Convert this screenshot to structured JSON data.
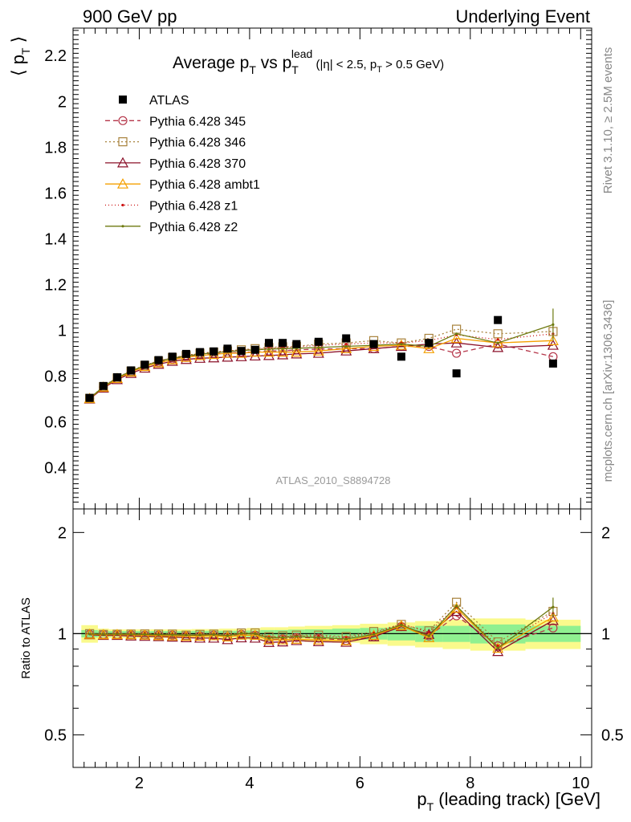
{
  "header": {
    "left": "900 GeV pp",
    "right": "Underlying Event"
  },
  "side": {
    "rivet": "Rivet 3.1.10, ≥ 2.5M events",
    "mcplots": "mcplots.cern.ch [arXiv:1306.3436]"
  },
  "analysis_id": "ATLAS_2010_S8894728",
  "colors": {
    "atlas": "#000000",
    "p345": "#b5364a",
    "p346": "#a8823c",
    "p370": "#8b1029",
    "ambt1": "#f5a000",
    "z1": "#cc1111",
    "z2": "#6e7a10",
    "band_green": "#90f090",
    "band_yellow": "#fafa8c"
  },
  "chart_data": [
    {
      "type": "scatter",
      "panel": "main",
      "title_main": "Average p",
      "title_sub1": "T",
      "title_mid": " vs p",
      "title_sub2": "T",
      "title_sup": "lead",
      "title_cond_a": " (|η| < 2.5, p",
      "title_cond_sub": "T",
      "title_cond_b": " > 0.5 GeV)",
      "ylabel_text": "⟨ p",
      "ylabel_sub": "T",
      "ylabel_close": " ⟩",
      "xlim": [
        0.8,
        10.2
      ],
      "ylim": [
        0.22,
        2.32
      ],
      "yticks": [
        0.4,
        0.6,
        0.8,
        1,
        1.2,
        1.4,
        1.6,
        1.8,
        2,
        2.2
      ],
      "ytick_labels": [
        "0.4",
        "0.6",
        "0.8",
        "1",
        "1.2",
        "1.4",
        "1.6",
        "1.8",
        "2",
        "2.2"
      ],
      "x": [
        1.1,
        1.35,
        1.6,
        1.85,
        2.1,
        2.35,
        2.6,
        2.85,
        3.1,
        3.35,
        3.6,
        3.85,
        4.1,
        4.35,
        4.6,
        4.85,
        5.25,
        5.75,
        6.25,
        6.75,
        7.25,
        7.75,
        8.5,
        9.5
      ],
      "legend": [
        {
          "key": "atlas",
          "label": "ATLAS"
        },
        {
          "key": "p345",
          "label": "Pythia 6.428 345"
        },
        {
          "key": "p346",
          "label": "Pythia 6.428 346"
        },
        {
          "key": "p370",
          "label": "Pythia 6.428 370"
        },
        {
          "key": "ambt1",
          "label": "Pythia 6.428 ambt1"
        },
        {
          "key": "z1",
          "label": "Pythia 6.428 z1"
        },
        {
          "key": "z2",
          "label": "Pythia 6.428 z2"
        }
      ],
      "series": [
        {
          "key": "atlas",
          "name": "ATLAS",
          "values": [
            0.705,
            0.757,
            0.795,
            0.825,
            0.85,
            0.87,
            0.885,
            0.897,
            0.905,
            0.908,
            0.92,
            0.91,
            0.915,
            0.945,
            0.945,
            0.94,
            0.95,
            0.965,
            0.94,
            0.885,
            0.945,
            0.812,
            1.045,
            0.855
          ]
        },
        {
          "key": "p345",
          "name": "Pythia 6.428 345",
          "values": [
            0.702,
            0.752,
            0.79,
            0.818,
            0.842,
            0.86,
            0.875,
            0.885,
            0.893,
            0.898,
            0.9,
            0.905,
            0.905,
            0.91,
            0.91,
            0.915,
            0.918,
            0.92,
            0.92,
            0.93,
            0.93,
            0.9,
            0.94,
            0.885
          ]
        },
        {
          "key": "p346",
          "name": "Pythia 6.428 346",
          "values": [
            0.703,
            0.754,
            0.792,
            0.822,
            0.847,
            0.866,
            0.881,
            0.89,
            0.9,
            0.905,
            0.91,
            0.915,
            0.92,
            0.925,
            0.928,
            0.93,
            0.94,
            0.945,
            0.955,
            0.945,
            0.965,
            1.005,
            0.985,
            0.995
          ]
        },
        {
          "key": "p370",
          "name": "Pythia 6.428 370",
          "values": [
            0.7,
            0.748,
            0.785,
            0.812,
            0.835,
            0.852,
            0.865,
            0.873,
            0.878,
            0.88,
            0.883,
            0.885,
            0.888,
            0.89,
            0.893,
            0.897,
            0.9,
            0.91,
            0.92,
            0.93,
            0.94,
            0.945,
            0.925,
            0.935
          ]
        },
        {
          "key": "ambt1",
          "name": "Pythia 6.428 ambt1",
          "values": [
            0.702,
            0.752,
            0.79,
            0.818,
            0.842,
            0.858,
            0.872,
            0.882,
            0.89,
            0.895,
            0.9,
            0.9,
            0.905,
            0.905,
            0.905,
            0.905,
            0.91,
            0.92,
            0.93,
            0.935,
            0.92,
            0.965,
            0.945,
            0.955
          ]
        },
        {
          "key": "z1",
          "name": "Pythia 6.428 z1",
          "values": [
            0.703,
            0.755,
            0.795,
            0.823,
            0.848,
            0.866,
            0.88,
            0.89,
            0.898,
            0.905,
            0.91,
            0.915,
            0.918,
            0.922,
            0.925,
            0.928,
            0.935,
            0.94,
            0.945,
            0.945,
            0.955,
            0.98,
            0.96,
            0.985
          ]
        },
        {
          "key": "z2",
          "name": "Pythia 6.428 z2",
          "values": [
            0.703,
            0.754,
            0.793,
            0.822,
            0.846,
            0.864,
            0.878,
            0.888,
            0.896,
            0.902,
            0.907,
            0.912,
            0.915,
            0.918,
            0.92,
            0.922,
            0.925,
            0.93,
            0.935,
            0.94,
            0.93,
            0.985,
            0.945,
            1.025
          ]
        }
      ]
    },
    {
      "type": "line",
      "panel": "ratio",
      "ylabel": "Ratio to ATLAS",
      "xlabel_p": "p",
      "xlabel_sub": "T",
      "xlabel_rest": " (leading track) [GeV]",
      "xlim": [
        0.8,
        10.2
      ],
      "xticks": [
        2,
        4,
        6,
        8,
        10
      ],
      "xtick_labels": [
        "2",
        "4",
        "6",
        "8",
        "10"
      ],
      "yscale": "log",
      "ylim": [
        0.4,
        2.35
      ],
      "yticks": [
        0.5,
        1,
        2
      ],
      "ytick_labels": [
        "0.5",
        "1",
        "2"
      ],
      "x": [
        1.1,
        1.35,
        1.6,
        1.85,
        2.1,
        2.35,
        2.6,
        2.85,
        3.1,
        3.35,
        3.6,
        3.85,
        4.1,
        4.35,
        4.6,
        4.85,
        5.25,
        5.75,
        6.25,
        6.75,
        7.25,
        7.75,
        8.5,
        9.5
      ],
      "x_edges": [
        0.95,
        1.25,
        1.45,
        1.7,
        1.95,
        2.2,
        2.45,
        2.7,
        2.95,
        3.2,
        3.45,
        3.7,
        3.95,
        4.2,
        4.45,
        4.7,
        5.0,
        5.5,
        6.0,
        6.5,
        7.0,
        7.5,
        8.0,
        9.0,
        10.0
      ],
      "band_green_halfwidth": [
        0.025,
        0.02,
        0.018,
        0.018,
        0.018,
        0.018,
        0.018,
        0.018,
        0.02,
        0.02,
        0.02,
        0.02,
        0.022,
        0.025,
        0.025,
        0.028,
        0.03,
        0.035,
        0.04,
        0.045,
        0.055,
        0.055,
        0.065,
        0.055
      ],
      "band_yellow_halfwidth": [
        0.06,
        0.035,
        0.03,
        0.03,
        0.03,
        0.03,
        0.03,
        0.03,
        0.032,
        0.032,
        0.035,
        0.035,
        0.04,
        0.045,
        0.045,
        0.05,
        0.055,
        0.06,
        0.07,
        0.08,
        0.09,
        0.1,
        0.11,
        0.1
      ],
      "series": [
        {
          "key": "p345",
          "name": "Pythia 6.428 345",
          "values": [
            0.995,
            0.995,
            0.995,
            0.992,
            0.99,
            0.99,
            0.99,
            0.985,
            0.985,
            0.99,
            0.98,
            0.995,
            0.99,
            0.96,
            0.965,
            0.975,
            0.97,
            0.955,
            0.98,
            1.05,
            0.985,
            1.13,
            0.92,
            1.04
          ]
        },
        {
          "key": "p346",
          "name": "Pythia 6.428 346",
          "values": [
            1.0,
            0.995,
            0.996,
            0.997,
            0.998,
            0.997,
            0.997,
            0.99,
            0.995,
            0.997,
            0.99,
            1.005,
            1.005,
            0.98,
            0.985,
            0.99,
            0.99,
            0.98,
            1.015,
            1.065,
            1.02,
            1.24,
            0.945,
            1.165
          ]
        },
        {
          "key": "p370",
          "name": "Pythia 6.428 370",
          "values": [
            0.993,
            0.988,
            0.988,
            0.984,
            0.982,
            0.98,
            0.977,
            0.973,
            0.97,
            0.97,
            0.96,
            0.972,
            0.97,
            0.942,
            0.945,
            0.954,
            0.947,
            0.943,
            0.979,
            1.05,
            0.995,
            1.165,
            0.885,
            1.094
          ]
        },
        {
          "key": "ambt1",
          "name": "Pythia 6.428 ambt1",
          "values": [
            0.996,
            0.993,
            0.994,
            0.992,
            0.99,
            0.987,
            0.985,
            0.983,
            0.983,
            0.986,
            0.978,
            0.99,
            0.989,
            0.958,
            0.958,
            0.963,
            0.958,
            0.953,
            0.989,
            1.056,
            0.973,
            1.19,
            0.905,
            1.12
          ]
        },
        {
          "key": "z1",
          "name": "Pythia 6.428 z1",
          "values": [
            0.997,
            0.997,
            1.0,
            0.998,
            0.998,
            0.995,
            0.994,
            0.992,
            0.992,
            0.997,
            0.989,
            1.005,
            1.003,
            0.976,
            0.979,
            0.987,
            0.984,
            0.974,
            1.005,
            1.068,
            1.01,
            1.205,
            0.92,
            1.15
          ]
        },
        {
          "key": "z2",
          "name": "Pythia 6.428 z2",
          "values": [
            0.997,
            0.996,
            0.997,
            0.996,
            0.995,
            0.993,
            0.992,
            0.99,
            0.99,
            0.994,
            0.986,
            1.002,
            1.0,
            0.971,
            0.974,
            0.981,
            0.974,
            0.964,
            0.995,
            1.062,
            0.984,
            1.21,
            0.905,
            1.2
          ]
        }
      ]
    }
  ]
}
